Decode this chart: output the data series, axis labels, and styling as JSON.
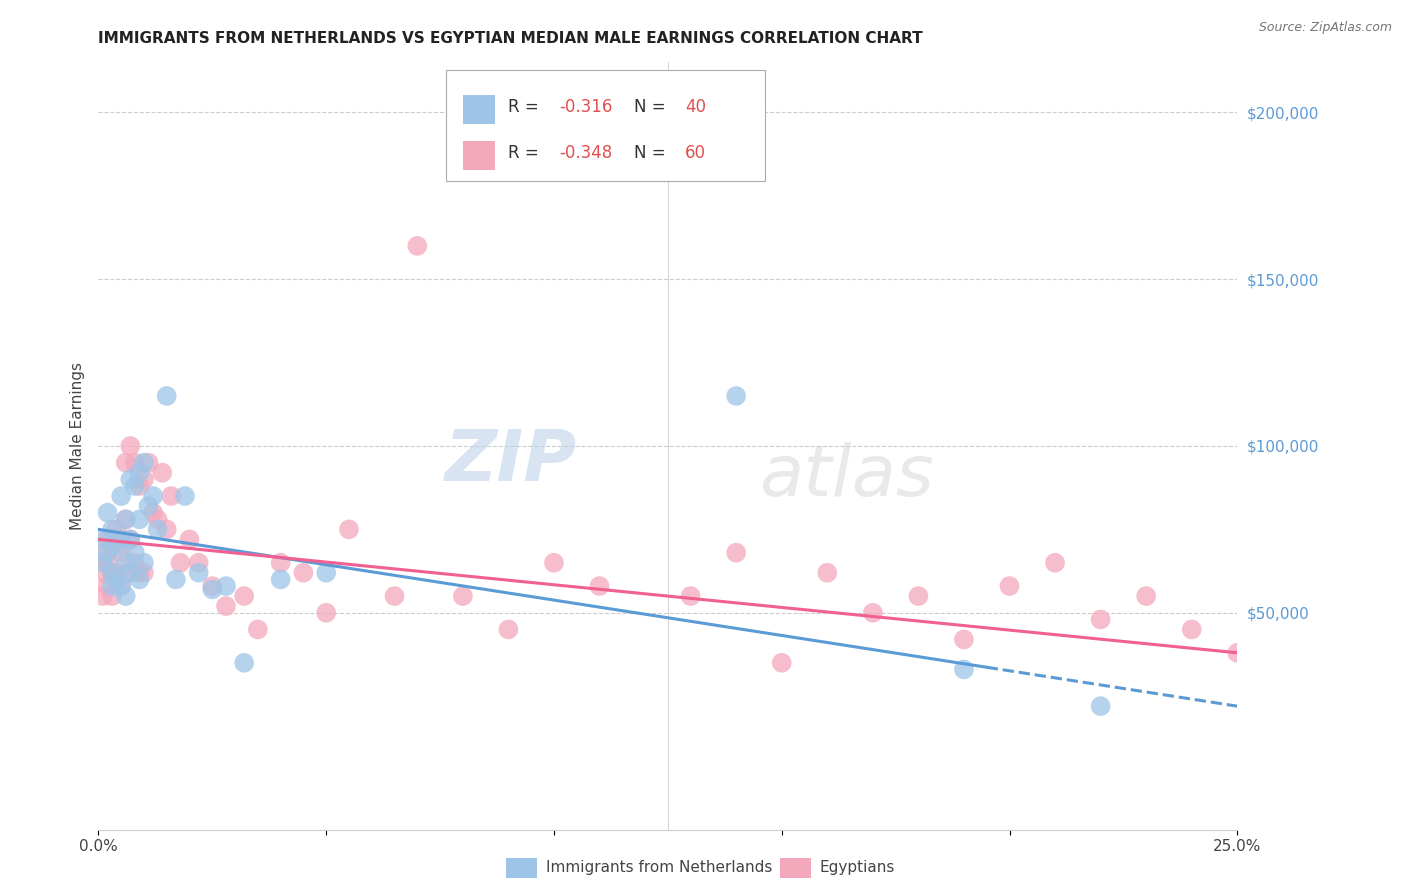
{
  "title": "IMMIGRANTS FROM NETHERLANDS VS EGYPTIAN MEDIAN MALE EARNINGS CORRELATION CHART",
  "source": "Source: ZipAtlas.com",
  "ylabel": "Median Male Earnings",
  "right_yticks": [
    0,
    50000,
    100000,
    150000,
    200000
  ],
  "right_yticklabels": [
    "",
    "$50,000",
    "$100,000",
    "$150,000",
    "$200,000"
  ],
  "xmin": 0.0,
  "xmax": 0.25,
  "ymin": -15000,
  "ymax": 215000,
  "blue_R": "-0.316",
  "blue_N": "40",
  "pink_R": "-0.348",
  "pink_N": "60",
  "blue_color": "#9ec5e8",
  "pink_color": "#f4a8bc",
  "blue_line_color": "#5b9bd5",
  "pink_line_color": "#f06090",
  "watermark_zip": "ZIP",
  "watermark_atlas": "atlas",
  "legend_label_blue": "Immigrants from Netherlands",
  "legend_label_pink": "Egyptians",
  "blue_scatter_x": [
    0.001,
    0.001,
    0.002,
    0.002,
    0.003,
    0.003,
    0.003,
    0.004,
    0.004,
    0.005,
    0.005,
    0.005,
    0.006,
    0.006,
    0.006,
    0.007,
    0.007,
    0.007,
    0.008,
    0.008,
    0.009,
    0.009,
    0.009,
    0.01,
    0.01,
    0.011,
    0.012,
    0.013,
    0.015,
    0.017,
    0.019,
    0.022,
    0.025,
    0.028,
    0.032,
    0.04,
    0.05,
    0.14,
    0.19,
    0.22
  ],
  "blue_scatter_y": [
    72000,
    65000,
    80000,
    68000,
    75000,
    62000,
    58000,
    70000,
    60000,
    85000,
    72000,
    58000,
    78000,
    65000,
    55000,
    90000,
    72000,
    62000,
    88000,
    68000,
    92000,
    78000,
    60000,
    95000,
    65000,
    82000,
    85000,
    75000,
    115000,
    60000,
    85000,
    62000,
    57000,
    58000,
    35000,
    60000,
    62000,
    115000,
    33000,
    22000
  ],
  "pink_scatter_x": [
    0.001,
    0.001,
    0.001,
    0.002,
    0.002,
    0.002,
    0.003,
    0.003,
    0.003,
    0.004,
    0.004,
    0.005,
    0.005,
    0.006,
    0.006,
    0.006,
    0.007,
    0.007,
    0.008,
    0.008,
    0.009,
    0.009,
    0.01,
    0.01,
    0.011,
    0.012,
    0.013,
    0.014,
    0.015,
    0.016,
    0.018,
    0.02,
    0.022,
    0.025,
    0.028,
    0.032,
    0.035,
    0.04,
    0.045,
    0.05,
    0.055,
    0.065,
    0.07,
    0.08,
    0.09,
    0.1,
    0.11,
    0.13,
    0.14,
    0.15,
    0.16,
    0.17,
    0.18,
    0.19,
    0.2,
    0.21,
    0.22,
    0.23,
    0.24,
    0.25
  ],
  "pink_scatter_y": [
    62000,
    55000,
    68000,
    65000,
    72000,
    58000,
    70000,
    62000,
    55000,
    75000,
    62000,
    68000,
    58000,
    95000,
    78000,
    62000,
    100000,
    72000,
    95000,
    65000,
    88000,
    62000,
    90000,
    62000,
    95000,
    80000,
    78000,
    92000,
    75000,
    85000,
    65000,
    72000,
    65000,
    58000,
    52000,
    55000,
    45000,
    65000,
    62000,
    50000,
    75000,
    55000,
    160000,
    55000,
    45000,
    65000,
    58000,
    55000,
    68000,
    35000,
    62000,
    50000,
    55000,
    42000,
    58000,
    65000,
    48000,
    55000,
    45000,
    38000
  ]
}
